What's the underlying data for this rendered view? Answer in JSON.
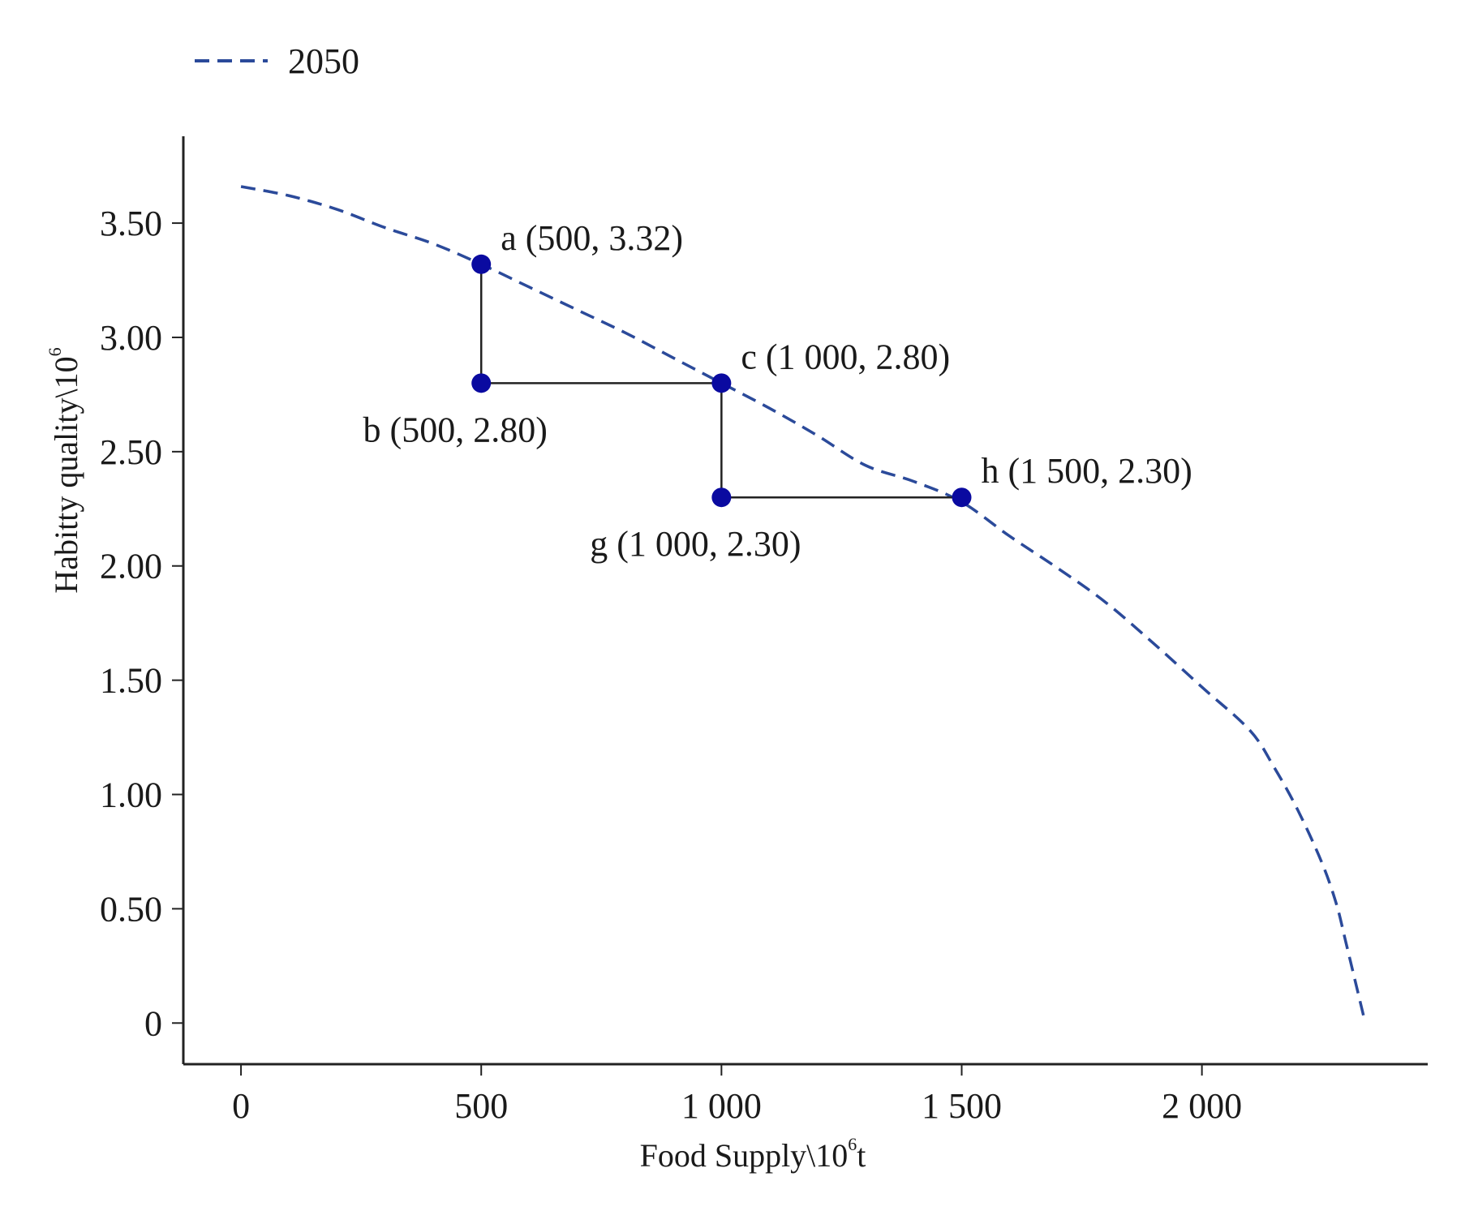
{
  "chart_data": {
    "type": "line",
    "title": "",
    "legend": {
      "position": "top-left",
      "entries": [
        {
          "label": "2050",
          "style": "dashed",
          "color": "#2b4a9a"
        }
      ]
    },
    "xlabel": "Food Supply\\10",
    "xlabel_sup": "6",
    "xlabel_unit": "t",
    "ylabel": "Habitty quality\\10",
    "ylabel_sup": "6",
    "xlim": [
      -120,
      2470
    ],
    "ylim": [
      -0.18,
      3.88
    ],
    "xticks": [
      {
        "value": 0,
        "label": "0"
      },
      {
        "value": 500,
        "label": "500"
      },
      {
        "value": 1000,
        "label": "1 000"
      },
      {
        "value": 1500,
        "label": "1 500"
      },
      {
        "value": 2000,
        "label": "2 000"
      }
    ],
    "yticks": [
      {
        "value": 0,
        "label": "0"
      },
      {
        "value": 0.5,
        "label": "0.50"
      },
      {
        "value": 1.0,
        "label": "1.00"
      },
      {
        "value": 1.5,
        "label": "1.50"
      },
      {
        "value": 2.0,
        "label": "2.00"
      },
      {
        "value": 2.5,
        "label": "2.50"
      },
      {
        "value": 3.0,
        "label": "3.00"
      },
      {
        "value": 3.5,
        "label": "3.50"
      }
    ],
    "series": [
      {
        "name": "2050",
        "color": "#2b4a9a",
        "line_style": "dashed",
        "x": [
          0,
          100,
          200,
          300,
          400,
          500,
          600,
          700,
          800,
          900,
          1000,
          1100,
          1200,
          1300,
          1400,
          1500,
          1600,
          1700,
          1800,
          1900,
          2000,
          2100,
          2150,
          2200,
          2250,
          2280,
          2300,
          2340
        ],
        "y": [
          3.66,
          3.62,
          3.56,
          3.48,
          3.41,
          3.32,
          3.22,
          3.12,
          3.02,
          2.91,
          2.8,
          2.69,
          2.57,
          2.44,
          2.37,
          2.28,
          2.13,
          1.99,
          1.84,
          1.66,
          1.47,
          1.28,
          1.12,
          0.93,
          0.7,
          0.52,
          0.35,
          0.0
        ]
      }
    ],
    "points": [
      {
        "id": "a",
        "label": "a (500, 3.32)",
        "x": 500,
        "y": 3.32,
        "anchor": "above-right"
      },
      {
        "id": "b",
        "label": "b (500, 2.80)",
        "x": 500,
        "y": 2.8,
        "anchor": "below-left"
      },
      {
        "id": "c",
        "label": "c (1 000, 2.80)",
        "x": 1000,
        "y": 2.8,
        "anchor": "above-right"
      },
      {
        "id": "g",
        "label": "g (1 000, 2.30)",
        "x": 1000,
        "y": 2.3,
        "anchor": "below-left"
      },
      {
        "id": "h",
        "label": "h (1 500, 2.30)",
        "x": 1500,
        "y": 2.3,
        "anchor": "above-right"
      }
    ],
    "point_color": "#0a0aa0",
    "connectors": [
      {
        "from": "a",
        "to": "b"
      },
      {
        "from": "b",
        "to": "c"
      },
      {
        "from": "c",
        "to": "g"
      },
      {
        "from": "g",
        "to": "h"
      }
    ],
    "connector_color": "#222222",
    "grid": false
  }
}
